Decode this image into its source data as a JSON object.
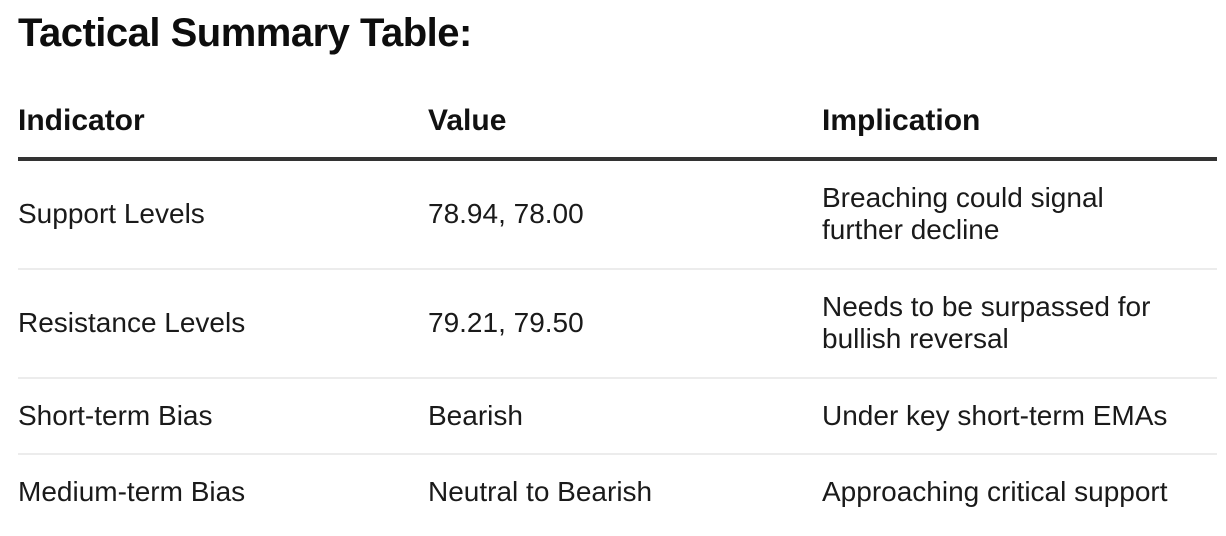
{
  "page": {
    "title": "Tactical Summary Table:"
  },
  "table": {
    "columns": [
      "Indicator",
      "Value",
      "Implication"
    ],
    "rows": [
      {
        "indicator": "Support Levels",
        "value": "78.94, 78.00",
        "implication": "Breaching could signal further decline"
      },
      {
        "indicator": "Resistance Levels",
        "value": "79.21, 79.50",
        "implication": "Needs to be surpassed for bullish reversal"
      },
      {
        "indicator": "Short-term Bias",
        "value": "Bearish",
        "implication": "Under key short-term EMAs"
      },
      {
        "indicator": "Medium-term Bias",
        "value": "Neutral to Bearish",
        "implication": "Approaching critical support"
      }
    ]
  },
  "colors": {
    "background": "#ffffff",
    "title_text": "#0d0d0d",
    "body_text": "#1a1a1a",
    "header_border": "#333333",
    "row_divider": "#ececec"
  }
}
